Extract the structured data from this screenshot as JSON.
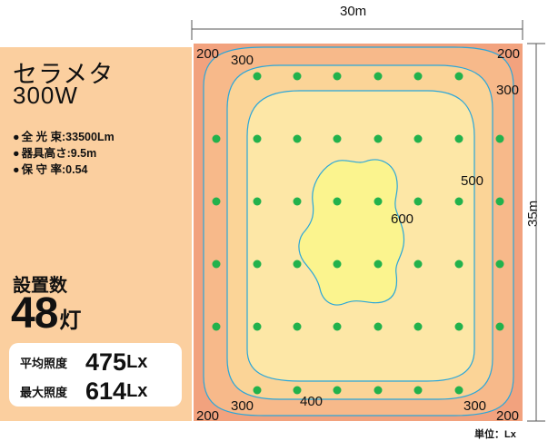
{
  "product": {
    "name": "セラメタ",
    "wattage": "300W"
  },
  "specs": [
    {
      "bullet": "●",
      "label": "全 光 束",
      "value": ":33500Lm"
    },
    {
      "bullet": "●",
      "label": "器具高さ",
      "value": ":9.5m"
    },
    {
      "bullet": "●",
      "label": "保 守 率",
      "value": ":0.54"
    }
  ],
  "installation": {
    "label": "設置数",
    "count": "48",
    "unit": "灯"
  },
  "illuminance": {
    "average": {
      "label": "平均照度",
      "value": "475",
      "unit": "Lx"
    },
    "maximum": {
      "label": "最大照度",
      "value": "614",
      "unit": "Lx"
    }
  },
  "dimensions": {
    "width": "30m",
    "height": "35m"
  },
  "contour_labels": {
    "top_left_200": "200",
    "top_300": "300",
    "top_right_200": "200",
    "right_300": "300",
    "mid_500": "500",
    "center_600": "600",
    "bottom_400": "400",
    "bottom_left_300": "300",
    "bottom_left_200": "200",
    "bottom_right_300": "300",
    "bottom_right_200": "200"
  },
  "unit_note": "単位：Lx",
  "colors": {
    "band_200": "#f2a27e",
    "band_300": "#f7b98a",
    "band_400": "#fbd497",
    "band_500": "#fde7a6",
    "band_600": "#fbf48e",
    "contour_line": "#2aa6d9",
    "fixture": "#22b24c",
    "panel": "#fbcf9f"
  }
}
